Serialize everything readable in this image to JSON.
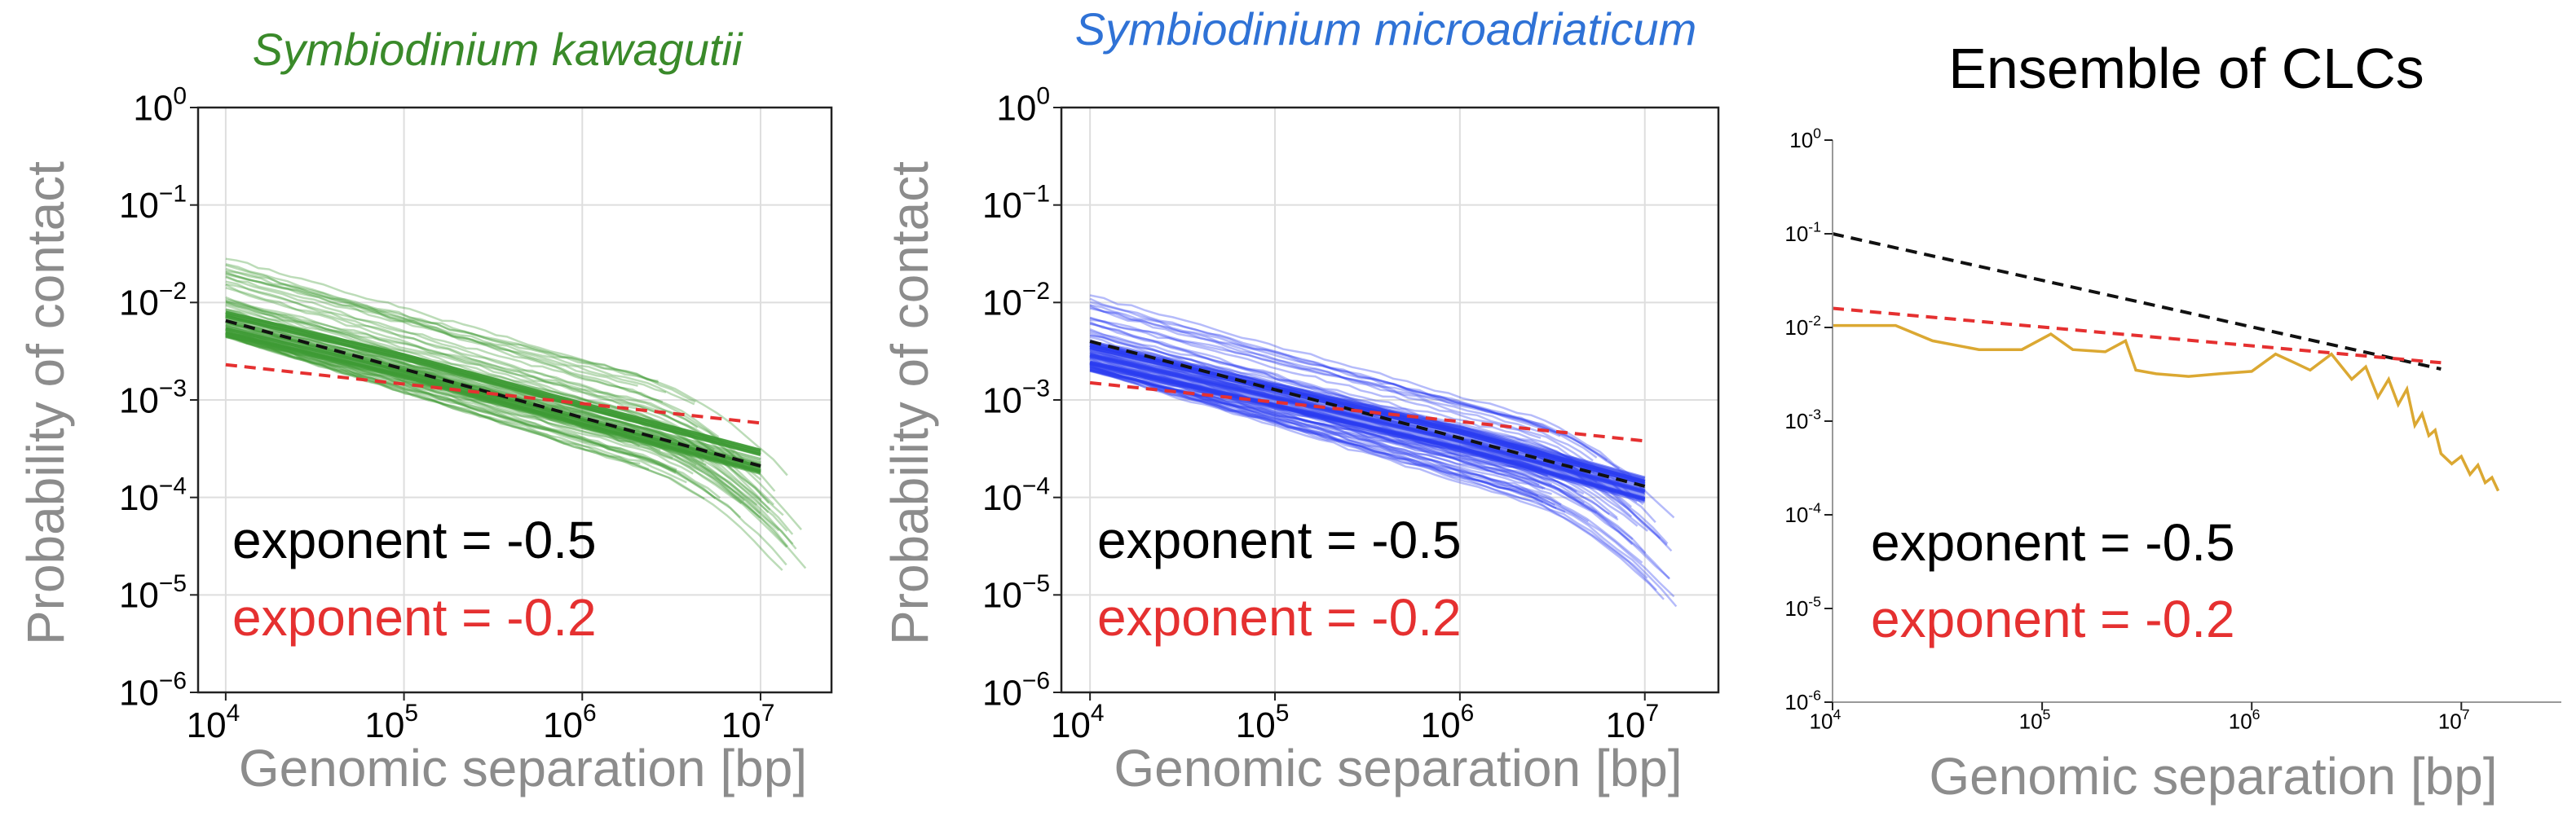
{
  "figure": {
    "panels": [
      {
        "id": "kawagutii",
        "title": "Symbiodinium kawagutii",
        "title_color": "#3a8a2a",
        "title_italic": true,
        "ylabel": "Probability of contact",
        "xlabel": "Genomic separation [bp]",
        "exp_label_black": "exponent = -0.5",
        "exp_label_red": "exponent = -0.2",
        "xticks": [
          {
            "base": "10",
            "exp": "4"
          },
          {
            "base": "10",
            "exp": "5"
          },
          {
            "base": "10",
            "exp": "6"
          },
          {
            "base": "10",
            "exp": "7"
          }
        ],
        "yticks": [
          {
            "base": "10",
            "exp": "0"
          },
          {
            "base": "10",
            "exp": "−1"
          },
          {
            "base": "10",
            "exp": "−2"
          },
          {
            "base": "10",
            "exp": "−3"
          },
          {
            "base": "10",
            "exp": "−4"
          },
          {
            "base": "10",
            "exp": "−5"
          },
          {
            "base": "10",
            "exp": "−6"
          }
        ]
      },
      {
        "id": "microadriaticum",
        "title": "Symbiodinium microadriaticum",
        "title_color": "#2f72d6",
        "title_italic": true,
        "ylabel": "Probability of contact",
        "xlabel": "Genomic separation [bp]",
        "exp_label_black": "exponent = -0.5",
        "exp_label_red": "exponent = -0.2",
        "xticks": [
          {
            "base": "10",
            "exp": "4"
          },
          {
            "base": "10",
            "exp": "5"
          },
          {
            "base": "10",
            "exp": "6"
          },
          {
            "base": "10",
            "exp": "7"
          }
        ],
        "yticks": [
          {
            "base": "10",
            "exp": "0"
          },
          {
            "base": "10",
            "exp": "−1"
          },
          {
            "base": "10",
            "exp": "−2"
          },
          {
            "base": "10",
            "exp": "−3"
          },
          {
            "base": "10",
            "exp": "−4"
          },
          {
            "base": "10",
            "exp": "−5"
          },
          {
            "base": "10",
            "exp": "−6"
          }
        ]
      },
      {
        "id": "clc",
        "title": "Ensemble of CLCs",
        "title_color": "#000000",
        "title_italic": false,
        "ylabel": "",
        "xlabel": "Genomic separation [bp]",
        "exp_label_black": "exponent = -0.5",
        "exp_label_red": "exponent = -0.2",
        "xticks": [
          {
            "base": "10",
            "exp": "4"
          },
          {
            "base": "10",
            "exp": "5"
          },
          {
            "base": "10",
            "exp": "6"
          },
          {
            "base": "10",
            "exp": "7"
          }
        ],
        "yticks": [
          {
            "base": "10",
            "exp": "0"
          },
          {
            "base": "10",
            "exp": "-1"
          },
          {
            "base": "10",
            "exp": "-2"
          },
          {
            "base": "10",
            "exp": "-3"
          },
          {
            "base": "10",
            "exp": "-4"
          },
          {
            "base": "10",
            "exp": "-5"
          },
          {
            "base": "10",
            "exp": "-6"
          }
        ]
      }
    ]
  },
  "chart_data": [
    {
      "type": "line",
      "title": "Symbiodinium kawagutii",
      "xlabel": "Genomic separation [bp]",
      "ylabel": "Probability of contact",
      "xscale": "log",
      "yscale": "log",
      "xlim": [
        7000,
        25000000
      ],
      "ylim": [
        1e-06,
        1
      ],
      "grid": true,
      "bundle": {
        "color": "#3e9a34",
        "count": 60,
        "x_start": 10000,
        "y_start_range": [
          0.0045,
          0.03
        ],
        "x_end_range": [
          2000000,
          18000000
        ],
        "slope_range": [
          -0.44,
          -0.58
        ],
        "median": {
          "x": [
            10000,
            100000,
            1000000,
            10000000
          ],
          "y": [
            0.006,
            0.0022,
            0.0007,
            0.00023
          ]
        }
      },
      "series": [
        {
          "name": "exponent = -0.5",
          "color": "#111111",
          "style": "dashed",
          "x": [
            10000,
            10000000
          ],
          "y": [
            0.0065,
            0.00021
          ]
        },
        {
          "name": "exponent = -0.2",
          "color": "#e53030",
          "style": "dashed",
          "x": [
            10000,
            10000000
          ],
          "y": [
            0.0023,
            0.00058
          ]
        }
      ]
    },
    {
      "type": "line",
      "title": "Symbiodinium microadriaticum",
      "xlabel": "Genomic separation [bp]",
      "ylabel": "Probability of contact",
      "xscale": "log",
      "yscale": "log",
      "xlim": [
        7000,
        25000000
      ],
      "ylim": [
        1e-06,
        1
      ],
      "grid": true,
      "bundle": {
        "color": "#2a3cf0",
        "count": 60,
        "x_start": 10000,
        "y_start_range": [
          0.002,
          0.012
        ],
        "x_end_range": [
          2500000,
          15000000
        ],
        "slope_range": [
          -0.4,
          -0.6
        ],
        "median": {
          "x": [
            10000,
            100000,
            1000000,
            10000000
          ],
          "y": [
            0.003,
            0.0011,
            0.0004,
            0.00012
          ]
        }
      },
      "series": [
        {
          "name": "exponent = -0.5",
          "color": "#111111",
          "style": "dashed",
          "x": [
            10000,
            10000000
          ],
          "y": [
            0.004,
            0.00013
          ]
        },
        {
          "name": "exponent = -0.2",
          "color": "#e53030",
          "style": "dashed",
          "x": [
            10000,
            10000000
          ],
          "y": [
            0.0015,
            0.00038
          ]
        }
      ]
    },
    {
      "type": "line",
      "title": "Ensemble of CLCs",
      "xlabel": "Genomic separation [bp]",
      "ylabel": "",
      "xscale": "log",
      "yscale": "log",
      "xlim": [
        10000,
        30000000
      ],
      "ylim": [
        1e-06,
        1
      ],
      "grid": false,
      "series": [
        {
          "name": "exponent = -0.5",
          "color": "#111111",
          "style": "dashed",
          "x": [
            10000,
            8000000
          ],
          "y": [
            0.1,
            0.0036
          ]
        },
        {
          "name": "exponent = -0.2",
          "color": "#e53030",
          "style": "dashed",
          "x": [
            10000,
            8000000
          ],
          "y": [
            0.016,
            0.0042
          ]
        },
        {
          "name": "CLC ensemble",
          "color": "#dba832",
          "style": "solid",
          "x": [
            10000,
            20000,
            30000,
            50000,
            80000,
            110000,
            140000,
            200000,
            250000,
            280000,
            350000,
            500000,
            700000,
            1000000,
            1300000,
            1600000,
            1900000,
            2400000,
            3000000,
            3500000,
            4000000,
            4500000,
            5000000,
            5500000,
            6000000,
            6500000,
            7000000,
            7500000,
            8000000,
            9000000,
            10000000,
            11000000,
            12000000,
            13000000,
            14000000,
            15000000
          ],
          "y": [
            0.0105,
            0.0105,
            0.0072,
            0.0058,
            0.0058,
            0.0085,
            0.0058,
            0.0055,
            0.0072,
            0.0035,
            0.0032,
            0.003,
            0.0032,
            0.0034,
            0.0052,
            0.0042,
            0.0035,
            0.0052,
            0.0028,
            0.0038,
            0.0018,
            0.0028,
            0.0015,
            0.0022,
            0.0009,
            0.0012,
            0.0007,
            0.0008,
            0.00045,
            0.00035,
            0.00042,
            0.00027,
            0.00034,
            0.00022,
            0.00025,
            0.00018
          ]
        }
      ]
    }
  ]
}
